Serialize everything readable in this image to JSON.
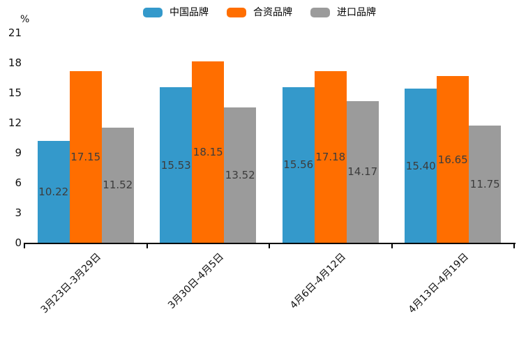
{
  "legend": {
    "items": [
      {
        "label": "中国品牌",
        "color": "#3499CB"
      },
      {
        "label": "合资品牌",
        "color": "#FF6E00"
      },
      {
        "label": "进口品牌",
        "color": "#9B9B9B"
      }
    ]
  },
  "y_axis": {
    "unit": "%",
    "ticks": [
      0,
      3,
      6,
      9,
      12,
      15,
      18,
      21
    ]
  },
  "chart_data": {
    "type": "bar",
    "title": "",
    "categories": [
      "3月23日-3月29日",
      "3月30日-4月5日",
      "4月6日-4月12日",
      "4月13日-4月19日"
    ],
    "series": [
      {
        "name": "中国品牌",
        "color": "#3499CB",
        "values": [
          10.22,
          15.53,
          15.56,
          15.4
        ]
      },
      {
        "name": "合资品牌",
        "color": "#FF6E00",
        "values": [
          17.15,
          18.15,
          17.18,
          16.65
        ]
      },
      {
        "name": "进口品牌",
        "color": "#9B9B9B",
        "values": [
          11.52,
          13.52,
          14.17,
          11.75
        ]
      }
    ],
    "xlabel": "",
    "ylabel": "%",
    "ylim": [
      0,
      21
    ],
    "y_tick_step": 3,
    "grid": false,
    "legend_position": "top",
    "value_labels": true,
    "value_label_format": "2dp",
    "x_label_rotation_deg": 45
  }
}
